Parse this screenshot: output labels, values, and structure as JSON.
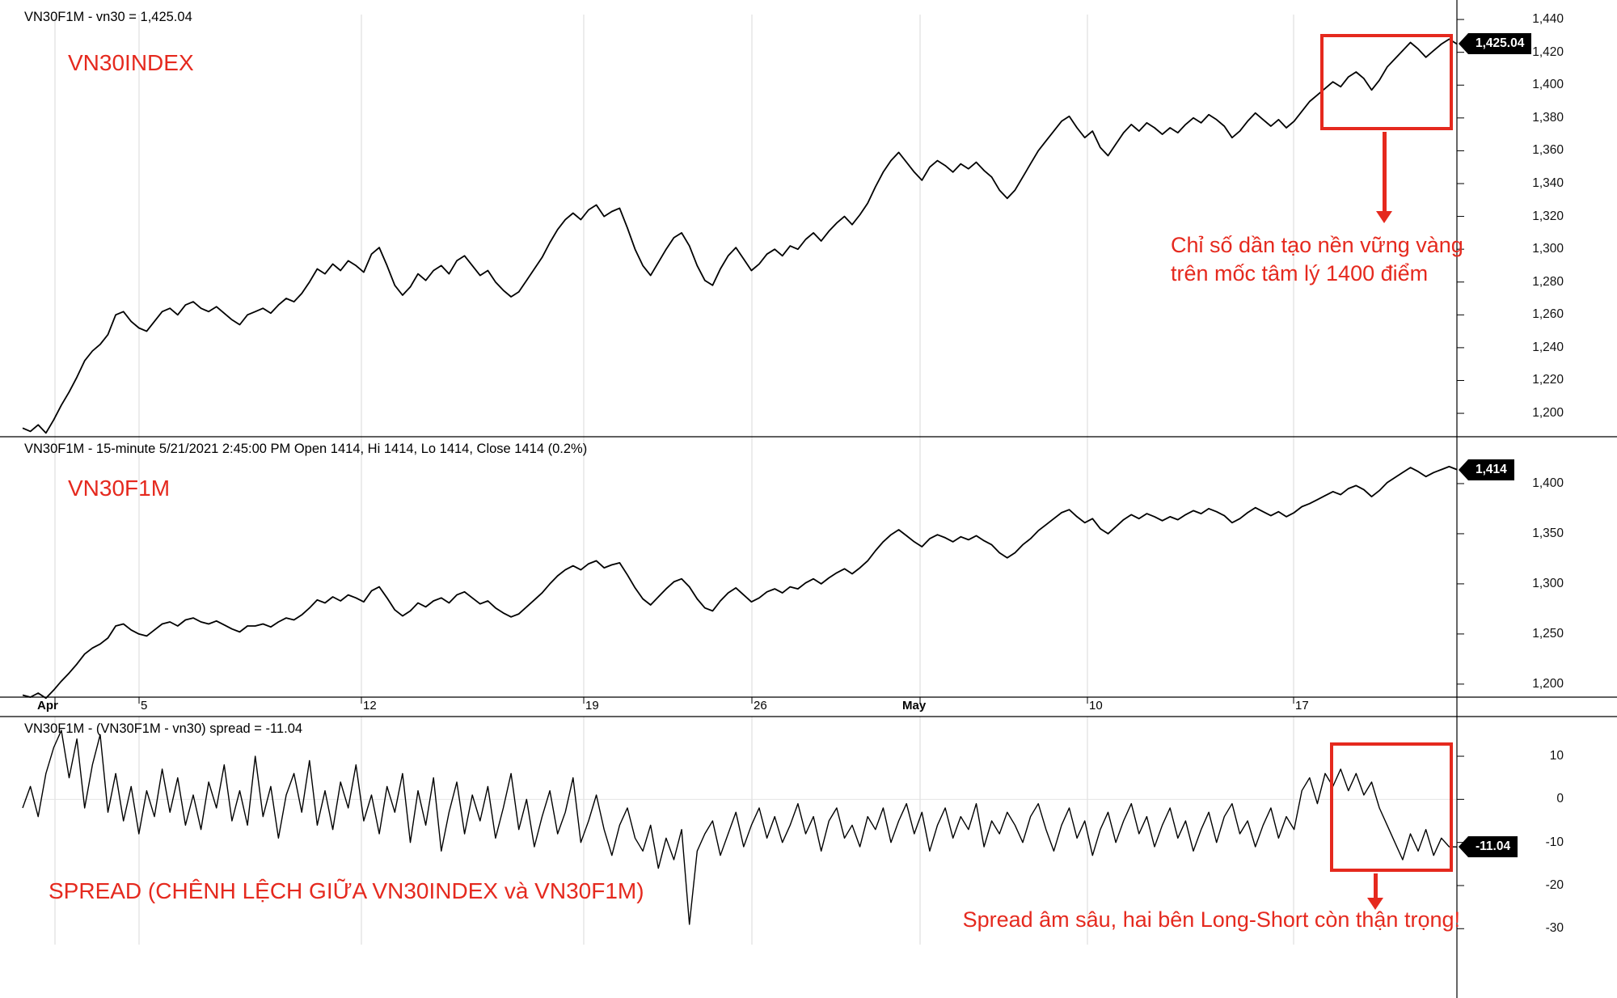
{
  "chart_data": {
    "type": "line",
    "x_labels": [
      {
        "t": "Apr",
        "month": true
      },
      {
        "t": "5"
      },
      {
        "t": "12"
      },
      {
        "t": "19"
      },
      {
        "t": "26"
      },
      {
        "t": "May",
        "month": true
      },
      {
        "t": "10"
      },
      {
        "t": "17"
      }
    ],
    "panels": [
      {
        "id": "vn30",
        "title": "VN30F1M - vn30 = 1,425.04",
        "series_label": "VN30INDEX",
        "tag": {
          "value": 1425.04,
          "text": "1,425.04"
        },
        "y_axis": {
          "min": 1200,
          "max": 1440,
          "ticks": [
            {
              "v": 1440,
              "t": "1,440"
            },
            {
              "v": 1420,
              "t": "1,420"
            },
            {
              "v": 1400,
              "t": "1,400"
            },
            {
              "v": 1380,
              "t": "1,380"
            },
            {
              "v": 1360,
              "t": "1,360"
            },
            {
              "v": 1340,
              "t": "1,340"
            },
            {
              "v": 1320,
              "t": "1,320"
            },
            {
              "v": 1300,
              "t": "1,300"
            },
            {
              "v": 1280,
              "t": "1,280"
            },
            {
              "v": 1260,
              "t": "1,260"
            },
            {
              "v": 1240,
              "t": "1,240"
            },
            {
              "v": 1220,
              "t": "1,220"
            },
            {
              "v": 1200,
              "t": "1,200"
            }
          ]
        },
        "values": [
          1191,
          1189,
          1193,
          1188,
          1196,
          1205,
          1213,
          1222,
          1232,
          1238,
          1242,
          1248,
          1260,
          1262,
          1256,
          1252,
          1250,
          1256,
          1262,
          1264,
          1260,
          1266,
          1268,
          1264,
          1262,
          1265,
          1261,
          1257,
          1254,
          1260,
          1262,
          1264,
          1261,
          1266,
          1270,
          1268,
          1273,
          1280,
          1288,
          1285,
          1291,
          1287,
          1293,
          1290,
          1286,
          1297,
          1301,
          1290,
          1278,
          1272,
          1277,
          1285,
          1281,
          1287,
          1290,
          1285,
          1293,
          1296,
          1290,
          1284,
          1287,
          1280,
          1275,
          1271,
          1274,
          1281,
          1288,
          1295,
          1304,
          1312,
          1318,
          1322,
          1318,
          1324,
          1327,
          1320,
          1323,
          1325,
          1313,
          1300,
          1290,
          1284,
          1292,
          1300,
          1307,
          1310,
          1302,
          1290,
          1281,
          1278,
          1288,
          1296,
          1301,
          1294,
          1287,
          1291,
          1297,
          1300,
          1296,
          1302,
          1300,
          1306,
          1310,
          1305,
          1311,
          1316,
          1320,
          1315,
          1321,
          1328,
          1338,
          1347,
          1354,
          1359,
          1353,
          1347,
          1342,
          1350,
          1354,
          1351,
          1347,
          1352,
          1349,
          1353,
          1348,
          1344,
          1336,
          1331,
          1336,
          1344,
          1352,
          1360,
          1366,
          1372,
          1378,
          1381,
          1374,
          1368,
          1372,
          1362,
          1357,
          1364,
          1371,
          1376,
          1372,
          1377,
          1374,
          1370,
          1374,
          1371,
          1376,
          1380,
          1377,
          1382,
          1379,
          1375,
          1368,
          1372,
          1378,
          1383,
          1379,
          1375,
          1379,
          1374,
          1378,
          1384,
          1390,
          1394,
          1398,
          1402,
          1399,
          1405,
          1408,
          1404,
          1397,
          1403,
          1411,
          1416,
          1421,
          1426,
          1422,
          1417,
          1421,
          1425,
          1428,
          1425.04
        ]
      },
      {
        "id": "vn30f1m",
        "title": "VN30F1M - 15-minute 5/21/2021 2:45:00 PM Open 1414, Hi 1414, Lo 1414, Close 1414 (0.2%)",
        "series_label": "VN30F1M",
        "tag": {
          "value": 1414,
          "text": "1,414"
        },
        "y_axis": {
          "min": 1200,
          "max": 1400,
          "ticks": [
            {
              "v": 1400,
              "t": "1,400"
            },
            {
              "v": 1350,
              "t": "1,350"
            },
            {
              "v": 1300,
              "t": "1,300"
            },
            {
              "v": 1250,
              "t": "1,250"
            },
            {
              "v": 1200,
              "t": "1,200"
            }
          ]
        },
        "values": [
          1189,
          1187,
          1191,
          1186,
          1194,
          1203,
          1211,
          1220,
          1230,
          1236,
          1240,
          1246,
          1258,
          1260,
          1254,
          1250,
          1248,
          1254,
          1260,
          1262,
          1258,
          1264,
          1266,
          1262,
          1260,
          1263,
          1259,
          1255,
          1252,
          1258,
          1258,
          1260,
          1257,
          1262,
          1266,
          1264,
          1269,
          1276,
          1284,
          1281,
          1287,
          1283,
          1289,
          1286,
          1282,
          1293,
          1297,
          1286,
          1274,
          1268,
          1273,
          1281,
          1277,
          1283,
          1286,
          1281,
          1289,
          1292,
          1286,
          1280,
          1283,
          1276,
          1271,
          1267,
          1270,
          1277,
          1284,
          1291,
          1300,
          1308,
          1314,
          1318,
          1314,
          1320,
          1323,
          1316,
          1319,
          1321,
          1309,
          1296,
          1285,
          1279,
          1287,
          1295,
          1302,
          1305,
          1297,
          1285,
          1276,
          1273,
          1283,
          1291,
          1296,
          1289,
          1282,
          1286,
          1292,
          1295,
          1291,
          1297,
          1295,
          1301,
          1305,
          1300,
          1306,
          1311,
          1315,
          1310,
          1316,
          1323,
          1333,
          1342,
          1349,
          1354,
          1348,
          1342,
          1337,
          1345,
          1349,
          1346,
          1342,
          1347,
          1344,
          1348,
          1343,
          1339,
          1331,
          1326,
          1331,
          1339,
          1345,
          1353,
          1359,
          1365,
          1371,
          1374,
          1367,
          1361,
          1365,
          1355,
          1350,
          1357,
          1364,
          1369,
          1365,
          1370,
          1367,
          1363,
          1367,
          1364,
          1369,
          1373,
          1370,
          1375,
          1372,
          1368,
          1361,
          1365,
          1371,
          1376,
          1372,
          1368,
          1372,
          1367,
          1371,
          1377,
          1380,
          1384,
          1388,
          1392,
          1389,
          1395,
          1398,
          1394,
          1387,
          1393,
          1401,
          1406,
          1411,
          1416,
          1412,
          1407,
          1411,
          1414,
          1417,
          1414
        ]
      },
      {
        "id": "spread",
        "title": "VN30F1M - (VN30F1M - vn30) spread = -11.04",
        "series_label": "SPREAD (CHÊNH LỆCH GIỮA VN30INDEX và VN30F1M)",
        "tag": {
          "value": -11.04,
          "text": "-11.04"
        },
        "y_axis": {
          "min": -30,
          "max": 10,
          "ticks": [
            {
              "v": 10,
              "t": "10"
            },
            {
              "v": 0,
              "t": "0"
            },
            {
              "v": -10,
              "t": "-10"
            },
            {
              "v": -20,
              "t": "-20"
            },
            {
              "v": -30,
              "t": "-30"
            }
          ]
        },
        "values": [
          -2,
          3,
          -4,
          6,
          12,
          16,
          5,
          14,
          -2,
          8,
          15,
          -3,
          6,
          -5,
          3,
          -8,
          2,
          -4,
          7,
          -3,
          5,
          -6,
          1,
          -7,
          4,
          -2,
          8,
          -5,
          2,
          -6,
          10,
          -4,
          3,
          -9,
          1,
          6,
          -3,
          9,
          -6,
          2,
          -7,
          4,
          -2,
          8,
          -5,
          1,
          -8,
          3,
          -3,
          6,
          -10,
          2,
          -6,
          5,
          -12,
          -3,
          4,
          -8,
          1,
          -5,
          3,
          -9,
          -2,
          6,
          -7,
          0,
          -11,
          -4,
          2,
          -8,
          -3,
          5,
          -10,
          -5,
          1,
          -7,
          -13,
          -6,
          -2,
          -9,
          -12,
          -6,
          -16,
          -9,
          -14,
          -7,
          -29,
          -12,
          -8,
          -5,
          -13,
          -8,
          -3,
          -11,
          -6,
          -2,
          -9,
          -4,
          -10,
          -6,
          -1,
          -8,
          -4,
          -12,
          -5,
          -2,
          -9,
          -6,
          -11,
          -4,
          -7,
          -2,
          -10,
          -5,
          -1,
          -8,
          -3,
          -12,
          -6,
          -2,
          -9,
          -4,
          -7,
          -1,
          -11,
          -5,
          -8,
          -3,
          -6,
          -10,
          -4,
          -1,
          -7,
          -12,
          -6,
          -2,
          -9,
          -5,
          -13,
          -7,
          -3,
          -10,
          -5,
          -1,
          -8,
          -4,
          -11,
          -6,
          -2,
          -9,
          -5,
          -12,
          -7,
          -3,
          -10,
          -4,
          -1,
          -8,
          -5,
          -11,
          -6,
          -2,
          -9,
          -4,
          -7,
          2,
          5,
          -1,
          6,
          3,
          7,
          2,
          6,
          1,
          4,
          -2,
          -6,
          -10,
          -14,
          -8,
          -12,
          -7,
          -13,
          -9,
          -11,
          -11.04
        ]
      }
    ],
    "annotations": {
      "accent_color": "#e5291e",
      "note1_line1": "Chỉ số dần tạo nền vững vàng",
      "note1_line2": "trên mốc tâm lý 1400 điểm",
      "note2": "Spread âm sâu, hai bên Long-Short còn thận trọng!"
    }
  }
}
